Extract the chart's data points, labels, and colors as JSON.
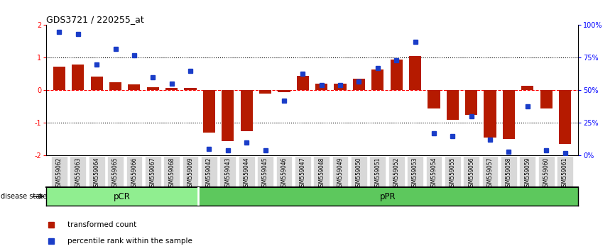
{
  "title": "GDS3721 / 220255_at",
  "samples": [
    "GSM559062",
    "GSM559063",
    "GSM559064",
    "GSM559065",
    "GSM559066",
    "GSM559067",
    "GSM559068",
    "GSM559069",
    "GSM559042",
    "GSM559043",
    "GSM559044",
    "GSM559045",
    "GSM559046",
    "GSM559047",
    "GSM559048",
    "GSM559049",
    "GSM559050",
    "GSM559051",
    "GSM559052",
    "GSM559053",
    "GSM559054",
    "GSM559055",
    "GSM559056",
    "GSM559057",
    "GSM559058",
    "GSM559059",
    "GSM559060",
    "GSM559061"
  ],
  "bar_values": [
    0.72,
    0.8,
    0.42,
    0.25,
    0.18,
    0.1,
    0.07,
    0.07,
    -1.3,
    -1.55,
    -1.25,
    -0.1,
    -0.05,
    0.45,
    0.2,
    0.2,
    0.35,
    0.65,
    0.95,
    1.05,
    -0.55,
    -0.9,
    -0.75,
    -1.45,
    -1.5,
    0.15,
    -0.55,
    -1.65
  ],
  "blue_values": [
    95,
    93,
    70,
    82,
    77,
    60,
    55,
    65,
    5,
    4,
    10,
    4,
    42,
    63,
    54,
    54,
    57,
    67,
    73,
    87,
    17,
    15,
    30,
    12,
    3,
    38,
    4,
    2
  ],
  "pCR_count": 8,
  "pPR_count": 20,
  "ylim": [
    -2,
    2
  ],
  "bar_color": "#b51a00",
  "blue_color": "#1a3dc8",
  "pCR_color": "#90ee90",
  "pPR_color": "#5dc85d",
  "disease_state_label": "disease state",
  "legend_bar": "transformed count",
  "legend_blue": "percentile rank within the sample",
  "right_ytick_labels": [
    "0%",
    "25%",
    "50%",
    "75%",
    "100%"
  ]
}
